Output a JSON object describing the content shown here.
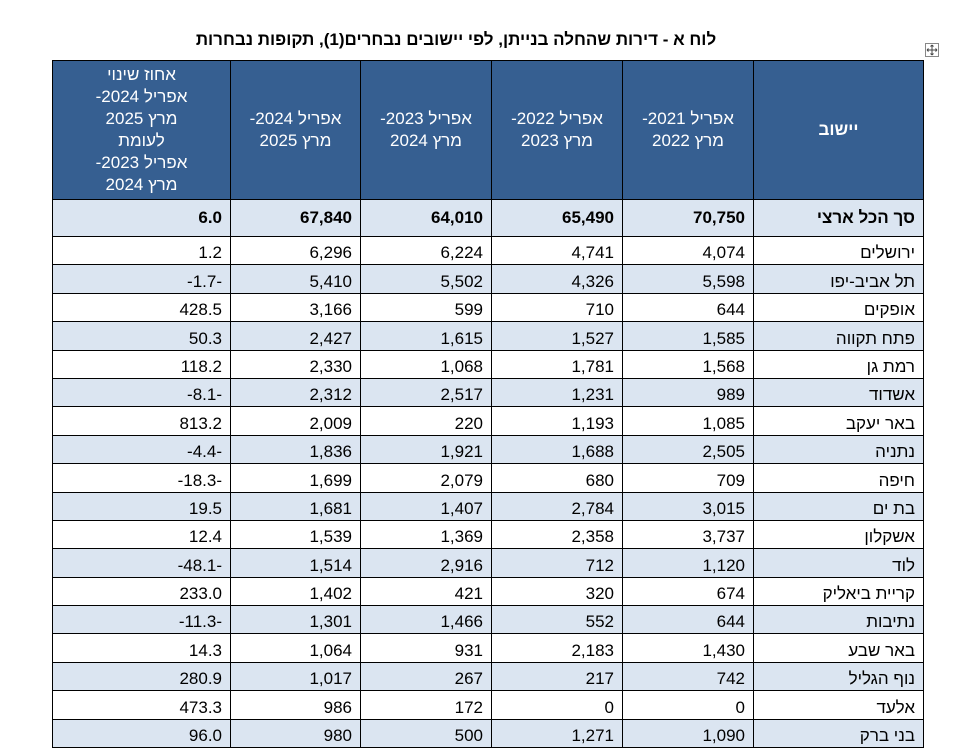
{
  "title": "לוח א - דירות שהחלה בנייתן, לפי יישובים נבחרים(1), תקופות נבחרות",
  "table": {
    "header": [
      "יישוב",
      "אפריל 2021-\nמרץ 2022",
      "אפריל 2022-\nמרץ 2023",
      "אפריל 2023-\nמרץ 2024",
      "אפריל 2024-\nמרץ 2025",
      "אחוז שינוי\nאפריל 2024-\nמרץ 2025\nלעומת\nאפריל 2023-\nמרץ 2024"
    ],
    "total": [
      "סך הכל ארצי",
      "70,750",
      "65,490",
      "64,010",
      "67,840",
      "6.0"
    ],
    "rows": [
      [
        "ירושלים",
        "4,074",
        "4,741",
        "6,224",
        "6,296",
        "1.2"
      ],
      [
        "תל אביב-יפו",
        "5,598",
        "4,326",
        "5,502",
        "5,410",
        "-1.7-"
      ],
      [
        "אופקים",
        "644",
        "710",
        "599",
        "3,166",
        "428.5"
      ],
      [
        "פתח תקווה",
        "1,585",
        "1,527",
        "1,615",
        "2,427",
        "50.3"
      ],
      [
        "רמת גן",
        "1,568",
        "1,781",
        "1,068",
        "2,330",
        "118.2"
      ],
      [
        "אשדוד",
        "989",
        "1,231",
        "2,517",
        "2,312",
        "-8.1-"
      ],
      [
        "באר יעקב",
        "1,085",
        "1,193",
        "220",
        "2,009",
        "813.2"
      ],
      [
        "נתניה",
        "2,505",
        "1,688",
        "1,921",
        "1,836",
        "-4.4-"
      ],
      [
        "חיפה",
        "709",
        "680",
        "2,079",
        "1,699",
        "-18.3-"
      ],
      [
        "בת ים",
        "3,015",
        "2,784",
        "1,407",
        "1,681",
        "19.5"
      ],
      [
        "אשקלון",
        "3,737",
        "2,358",
        "1,369",
        "1,539",
        "12.4"
      ],
      [
        "לוד",
        "1,120",
        "712",
        "2,916",
        "1,514",
        "-48.1-"
      ],
      [
        "קריית ביאליק",
        "674",
        "320",
        "421",
        "1,402",
        "233.0"
      ],
      [
        "נתיבות",
        "644",
        "552",
        "1,466",
        "1,301",
        "-11.3-"
      ],
      [
        "באר שבע",
        "1,430",
        "2,183",
        "931",
        "1,064",
        "14.3"
      ],
      [
        "נוף הגליל",
        "742",
        "217",
        "267",
        "1,017",
        "280.9"
      ],
      [
        "אלעד",
        "0",
        "0",
        "172",
        "986",
        "473.3"
      ],
      [
        "בני ברק",
        "1,090",
        "1,271",
        "500",
        "980",
        "96.0"
      ]
    ]
  }
}
